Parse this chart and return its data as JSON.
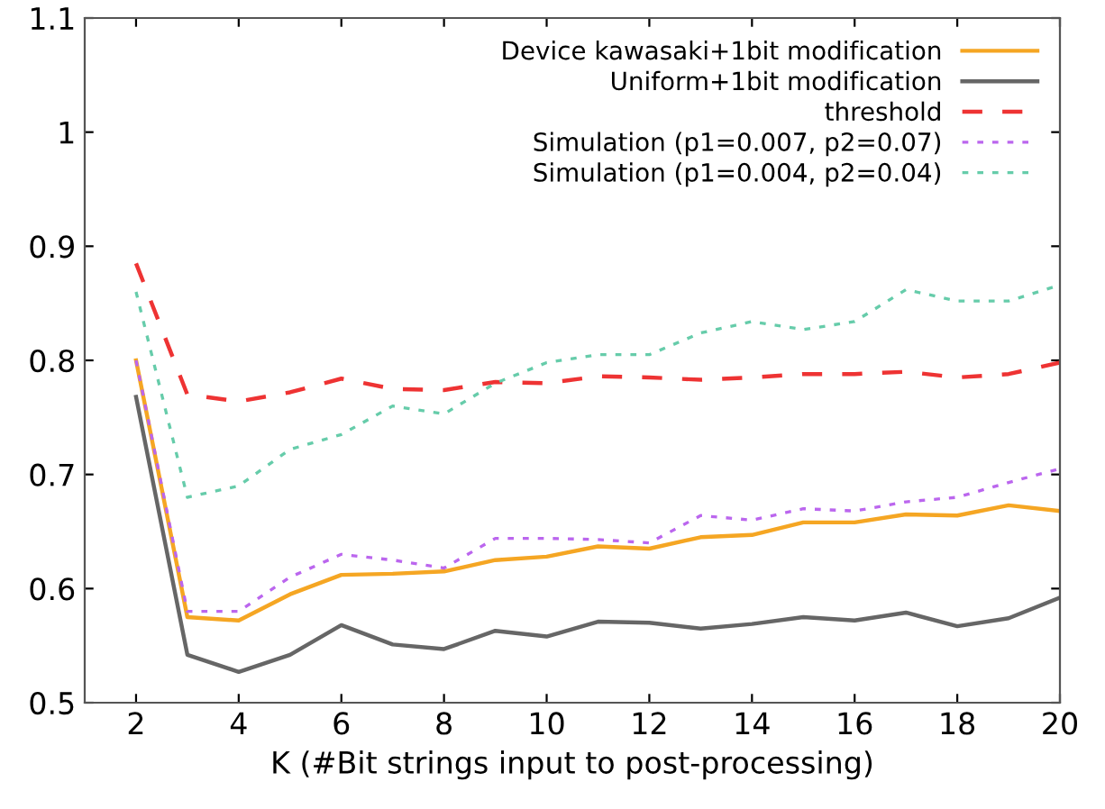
{
  "chart_data": {
    "type": "line",
    "xlabel": "K (#Bit strings input to post-processing)",
    "x": [
      2,
      3,
      4,
      5,
      6,
      7,
      8,
      9,
      10,
      11,
      12,
      13,
      14,
      15,
      16,
      17,
      18,
      19,
      20
    ],
    "series": [
      {
        "name": "Device kawasaki+1bit modification",
        "color": "#f5a623",
        "line_style": "solid",
        "values": [
          0.8,
          0.575,
          0.572,
          0.595,
          0.612,
          0.613,
          0.615,
          0.625,
          0.628,
          0.637,
          0.635,
          0.645,
          0.647,
          0.658,
          0.658,
          0.665,
          0.664,
          0.673,
          0.668
        ]
      },
      {
        "name": "Uniform+1bit modification",
        "color": "#666666",
        "line_style": "solid",
        "values": [
          0.768,
          0.542,
          0.527,
          0.542,
          0.568,
          0.551,
          0.547,
          0.563,
          0.558,
          0.571,
          0.57,
          0.565,
          0.569,
          0.575,
          0.572,
          0.579,
          0.567,
          0.574,
          0.592
        ]
      },
      {
        "name": "threshold",
        "color": "#ee3333",
        "line_style": "dashed",
        "values": [
          0.885,
          0.77,
          0.764,
          0.772,
          0.784,
          0.775,
          0.774,
          0.781,
          0.78,
          0.786,
          0.785,
          0.783,
          0.785,
          0.788,
          0.788,
          0.79,
          0.785,
          0.788,
          0.798
        ]
      },
      {
        "name": "Simulation (p1=0.007, p2=0.07)",
        "color": "#bb66ee",
        "line_style": "dotted",
        "values": [
          0.8,
          0.58,
          0.58,
          0.61,
          0.63,
          0.625,
          0.618,
          0.644,
          0.644,
          0.643,
          0.64,
          0.664,
          0.66,
          0.67,
          0.668,
          0.676,
          0.68,
          0.693,
          0.705
        ]
      },
      {
        "name": "Simulation (p1=0.004, p2=0.04)",
        "color": "#66ccaa",
        "line_style": "dotted",
        "values": [
          0.86,
          0.68,
          0.69,
          0.722,
          0.735,
          0.76,
          0.753,
          0.78,
          0.798,
          0.805,
          0.805,
          0.824,
          0.834,
          0.827,
          0.834,
          0.862,
          0.852,
          0.852,
          0.866
        ]
      }
    ],
    "xlim": [
      1,
      20
    ],
    "ylim": [
      0.5,
      1.1
    ],
    "xticks": [
      2,
      4,
      6,
      8,
      10,
      12,
      14,
      16,
      18,
      20
    ],
    "yticks": [
      0.5,
      0.6,
      0.7,
      0.8,
      0.9,
      {
        "value": 1,
        "label": "1"
      },
      1.1
    ],
    "grid": false,
    "legend": "top right",
    "marker": "none"
  }
}
